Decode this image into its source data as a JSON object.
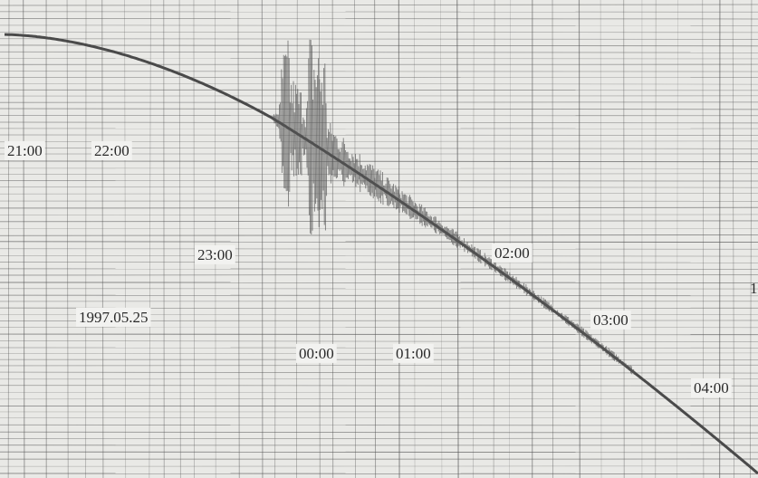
{
  "time_labels": [
    "21:00",
    "22:00",
    "23:00",
    "00:00",
    "01:00",
    "02:00",
    "03:00",
    "04:00"
  ],
  "date": "1997.05.25",
  "edge_mark": "1"
}
